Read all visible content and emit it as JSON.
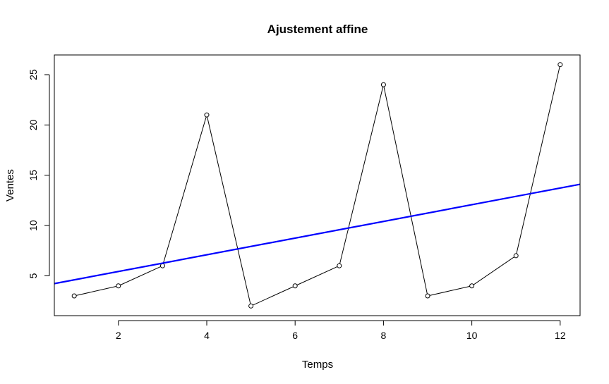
{
  "chart_data": {
    "type": "line",
    "title": "Ajustement affine",
    "xlabel": "Temps",
    "ylabel": "Ventes",
    "xlim": [
      0.55,
      12.45
    ],
    "ylim": [
      1.04,
      26.96
    ],
    "xticks": [
      2,
      4,
      6,
      8,
      10,
      12
    ],
    "yticks": [
      5,
      10,
      15,
      20,
      25
    ],
    "grid": false,
    "series": [
      {
        "x": [
          1,
          2,
          3,
          4,
          5,
          6,
          7,
          8,
          9,
          10,
          11,
          12
        ],
        "values": [
          3,
          4,
          6,
          21,
          2,
          4,
          6,
          24,
          3,
          4,
          7,
          26
        ],
        "color": "#000000",
        "marker": "open-circle"
      }
    ],
    "fit_line": {
      "intercept": 3.77,
      "slope": 0.83,
      "color": "#0000ff"
    }
  }
}
